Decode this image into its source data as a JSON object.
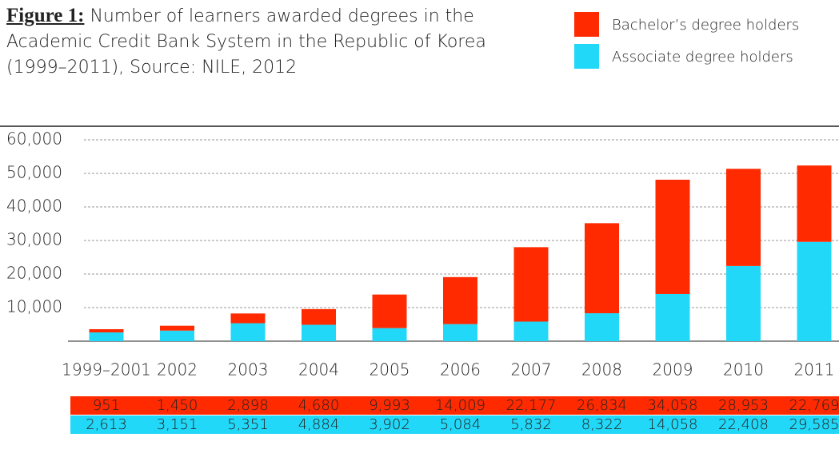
{
  "chart_data": {
    "type": "stacked_bar",
    "title": "Figure 1:",
    "subtitle": "Number of learners awarded degrees in the Academic Credit Bank System in the Republic of Korea (1999–2011), Source: NILE, 2012",
    "categories": [
      "1999–2001",
      "2002",
      "2003",
      "2004",
      "2005",
      "2006",
      "2007",
      "2008",
      "2009",
      "2010",
      "2011"
    ],
    "series": [
      {
        "name": "Bachelor’s degree holders",
        "color": "#ff2a00",
        "values": [
          951,
          1450,
          2898,
          4680,
          9993,
          14009,
          22177,
          26834,
          34058,
          28953,
          22769
        ],
        "value_labels": [
          "951",
          "1,450",
          "2,898",
          "4,680",
          "9,993",
          "14,009",
          "22,177",
          "26,834",
          "34,058",
          "28,953",
          "22,769"
        ]
      },
      {
        "name": "Associate degree holders",
        "color": "#22d8f8",
        "values": [
          2613,
          3151,
          5351,
          4884,
          3902,
          5084,
          5832,
          8322,
          14058,
          22408,
          29585
        ],
        "value_labels": [
          "2,613",
          "3,151",
          "5,351",
          "4,884",
          "3,902",
          "5,084",
          "5,832",
          "8,322",
          "14,058",
          "22,408",
          "29,585"
        ]
      }
    ],
    "stack_order": [
      "Associate degree holders",
      "Bachelor’s degree holders"
    ],
    "ylim": [
      0,
      60000
    ],
    "yticks": [
      {
        "value": 10000,
        "label": "10,000"
      },
      {
        "value": 20000,
        "label": "20,000"
      },
      {
        "value": 30000,
        "label": "30,000"
      },
      {
        "value": 40000,
        "label": "40,000"
      },
      {
        "value": 50000,
        "label": "50,000"
      },
      {
        "value": 60000,
        "label": "60,000"
      }
    ],
    "grid": true,
    "legend": "top-right"
  }
}
